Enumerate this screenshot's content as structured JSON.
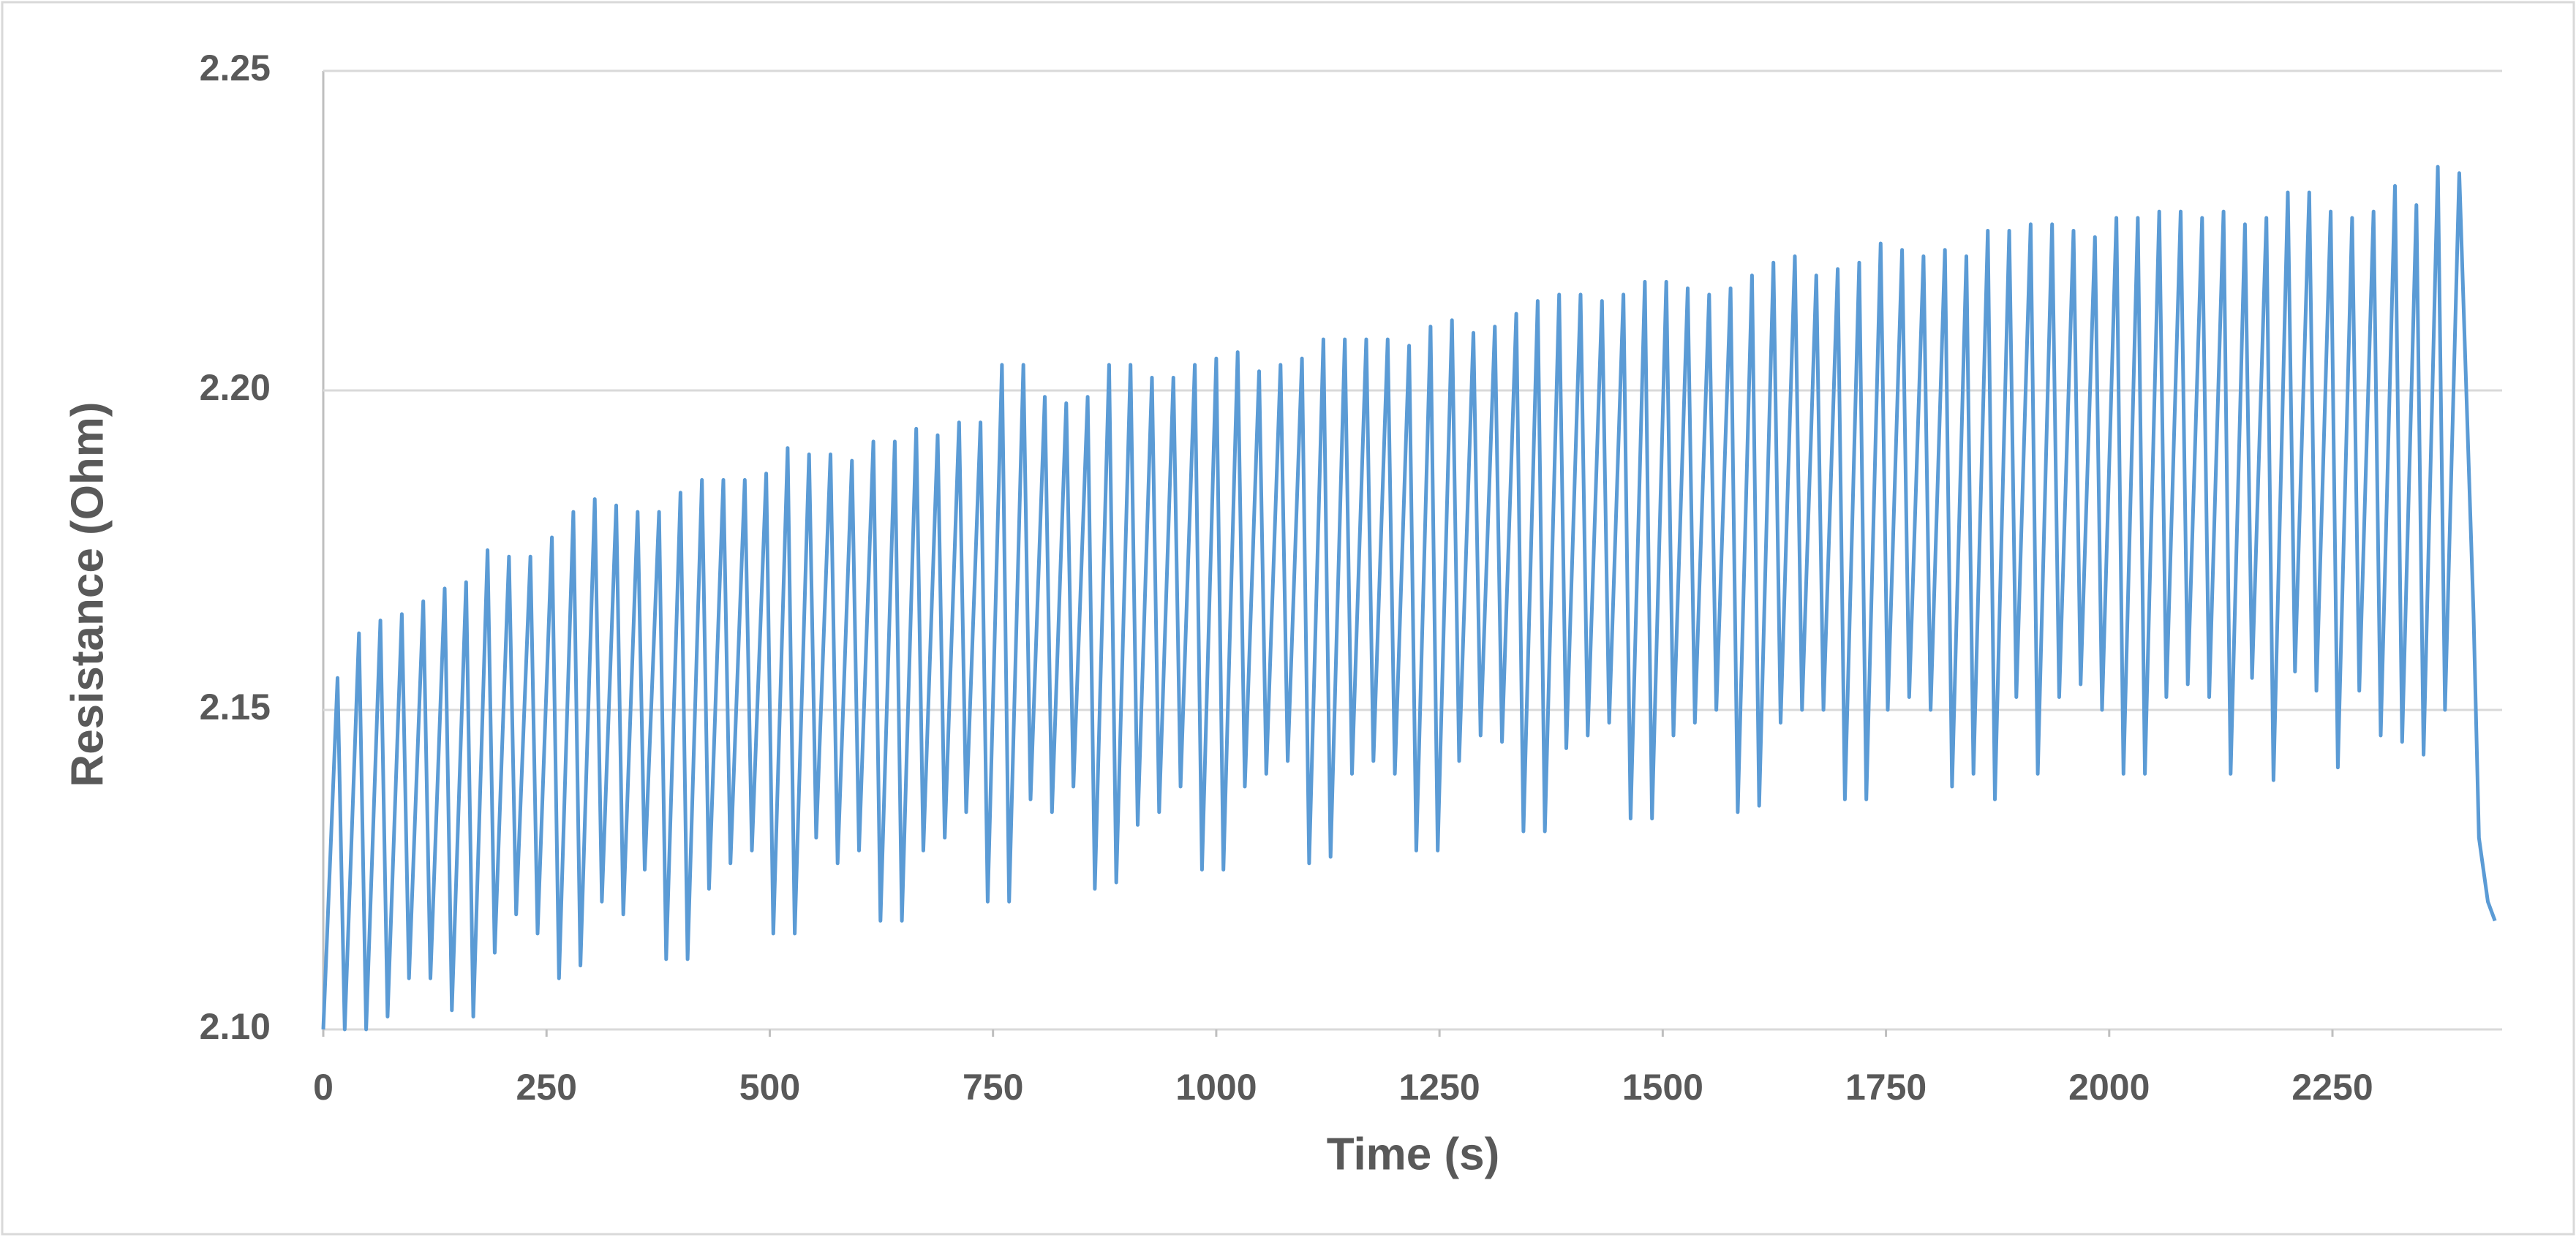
{
  "chart_data": {
    "type": "line",
    "xlabel": "Time (s)",
    "ylabel": "Resistance (Ohm)",
    "color": "#5b9bd5",
    "grid": true,
    "xlim": [
      0,
      2440
    ],
    "xticks": [
      0,
      250,
      500,
      750,
      1000,
      1250,
      1500,
      1750,
      2000,
      2250
    ],
    "ylim": [
      2.1,
      2.25
    ],
    "yticks": [
      {
        "value": 2.1,
        "label": "2.10"
      },
      {
        "value": 2.15,
        "label": "2.15"
      },
      {
        "value": 2.2,
        "label": "2.20"
      },
      {
        "value": 2.25,
        "label": "2.25"
      }
    ],
    "x": [
      0,
      16,
      24,
      40,
      48,
      64,
      72,
      88,
      96,
      112,
      120,
      136,
      144,
      160,
      168,
      184,
      192,
      208,
      216,
      232,
      240,
      256,
      264,
      280,
      288,
      304,
      312,
      328,
      336,
      352,
      360,
      376,
      384,
      400,
      408,
      424,
      432,
      448,
      456,
      472,
      480,
      496,
      504,
      520,
      528,
      544,
      552,
      568,
      576,
      592,
      600,
      616,
      624,
      640,
      648,
      664,
      672,
      688,
      696,
      712,
      720,
      736,
      744,
      760,
      768,
      784,
      792,
      808,
      816,
      832,
      840,
      856,
      864,
      880,
      888,
      904,
      912,
      928,
      936,
      952,
      960,
      976,
      984,
      1000,
      1008,
      1024,
      1032,
      1048,
      1056,
      1072,
      1080,
      1096,
      1104,
      1120,
      1128,
      1144,
      1152,
      1168,
      1176,
      1192,
      1200,
      1216,
      1224,
      1240,
      1248,
      1264,
      1272,
      1288,
      1296,
      1312,
      1320,
      1336,
      1344,
      1360,
      1368,
      1384,
      1392,
      1408,
      1416,
      1432,
      1440,
      1456,
      1464,
      1480,
      1488,
      1504,
      1512,
      1528,
      1536,
      1552,
      1560,
      1576,
      1584,
      1600,
      1608,
      1624,
      1632,
      1648,
      1656,
      1672,
      1680,
      1696,
      1704,
      1720,
      1728,
      1744,
      1752,
      1768,
      1776,
      1792,
      1800,
      1816,
      1824,
      1840,
      1848,
      1864,
      1872,
      1888,
      1896,
      1912,
      1920,
      1936,
      1944,
      1960,
      1968,
      1984,
      1992,
      2008,
      2016,
      2032,
      2040,
      2056,
      2064,
      2080,
      2088,
      2104,
      2112,
      2128,
      2136,
      2152,
      2160,
      2176,
      2184,
      2200,
      2208,
      2224,
      2232,
      2248,
      2256,
      2272,
      2280,
      2296,
      2304,
      2320,
      2328,
      2344,
      2352,
      2368,
      2376,
      2392,
      2408,
      2414,
      2424,
      2432
    ],
    "values": [
      2.1,
      2.155,
      2.1,
      2.162,
      2.1,
      2.164,
      2.102,
      2.165,
      2.108,
      2.167,
      2.108,
      2.169,
      2.103,
      2.17,
      2.102,
      2.175,
      2.112,
      2.174,
      2.118,
      2.174,
      2.115,
      2.177,
      2.108,
      2.181,
      2.11,
      2.183,
      2.12,
      2.182,
      2.118,
      2.181,
      2.125,
      2.181,
      2.111,
      2.184,
      2.111,
      2.186,
      2.122,
      2.186,
      2.126,
      2.186,
      2.128,
      2.187,
      2.115,
      2.191,
      2.115,
      2.19,
      2.13,
      2.19,
      2.126,
      2.189,
      2.128,
      2.192,
      2.117,
      2.192,
      2.117,
      2.194,
      2.128,
      2.193,
      2.13,
      2.195,
      2.134,
      2.195,
      2.12,
      2.204,
      2.12,
      2.204,
      2.136,
      2.199,
      2.134,
      2.198,
      2.138,
      2.199,
      2.122,
      2.204,
      2.123,
      2.204,
      2.132,
      2.202,
      2.134,
      2.202,
      2.138,
      2.204,
      2.125,
      2.205,
      2.125,
      2.206,
      2.138,
      2.203,
      2.14,
      2.204,
      2.142,
      2.205,
      2.126,
      2.208,
      2.127,
      2.208,
      2.14,
      2.208,
      2.142,
      2.208,
      2.14,
      2.207,
      2.128,
      2.21,
      2.128,
      2.211,
      2.142,
      2.209,
      2.146,
      2.21,
      2.145,
      2.212,
      2.131,
      2.214,
      2.131,
      2.215,
      2.144,
      2.215,
      2.146,
      2.214,
      2.148,
      2.215,
      2.133,
      2.217,
      2.133,
      2.217,
      2.146,
      2.216,
      2.148,
      2.215,
      2.15,
      2.216,
      2.134,
      2.218,
      2.135,
      2.22,
      2.148,
      2.221,
      2.15,
      2.218,
      2.15,
      2.219,
      2.136,
      2.22,
      2.136,
      2.223,
      2.15,
      2.222,
      2.152,
      2.221,
      2.15,
      2.222,
      2.138,
      2.221,
      2.14,
      2.225,
      2.136,
      2.225,
      2.152,
      2.226,
      2.14,
      2.226,
      2.152,
      2.225,
      2.154,
      2.224,
      2.15,
      2.227,
      2.14,
      2.227,
      2.14,
      2.228,
      2.152,
      2.228,
      2.154,
      2.227,
      2.152,
      2.228,
      2.14,
      2.226,
      2.155,
      2.227,
      2.139,
      2.231,
      2.156,
      2.231,
      2.153,
      2.228,
      2.141,
      2.227,
      2.153,
      2.228,
      2.146,
      2.232,
      2.145,
      2.229,
      2.143,
      2.235,
      2.15,
      2.234,
      2.165,
      2.13,
      2.12,
      2.117
    ]
  }
}
